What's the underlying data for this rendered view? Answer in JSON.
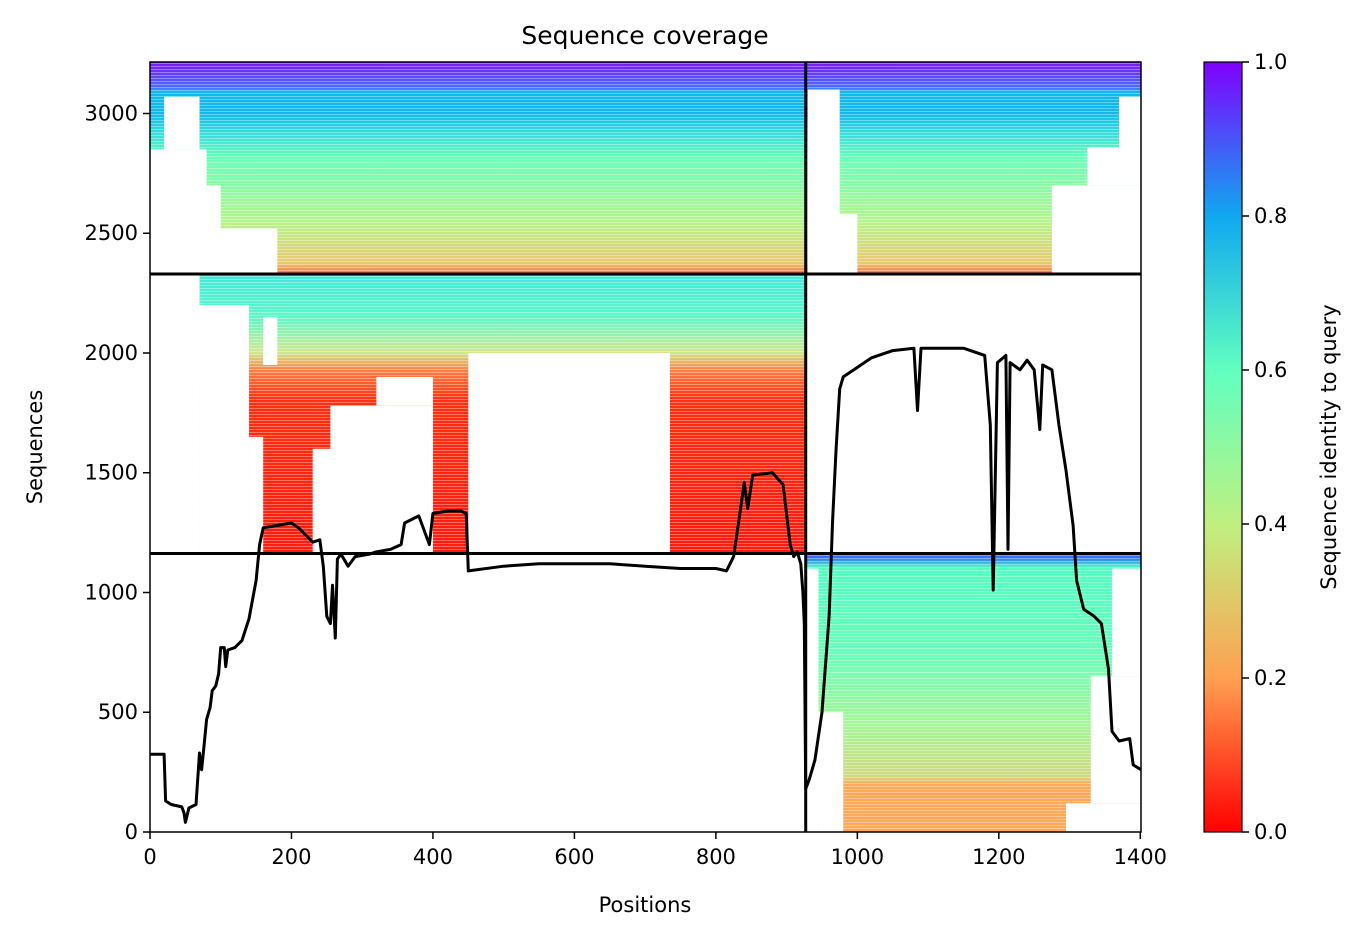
{
  "chart_data": {
    "type": "heatmap",
    "title": "Sequence coverage",
    "xlabel": "Positions",
    "ylabel": "Sequences",
    "xlim": [
      0,
      1401
    ],
    "ylim": [
      0,
      3215
    ],
    "x_ticks": [
      0,
      200,
      400,
      600,
      800,
      1000,
      1200,
      1400
    ],
    "y_ticks": [
      0,
      500,
      1000,
      1500,
      2000,
      2500,
      3000
    ],
    "colorbar": {
      "label": "Sequence identity to query",
      "range": [
        0.0,
        1.0
      ],
      "ticks": [
        "0.0",
        "0.2",
        "0.4",
        "0.6",
        "0.8",
        "1.0"
      ],
      "colormap": "rainbow_r"
    },
    "chain_boundary_x": 927,
    "section_boundaries_y": [
      1163,
      2330
    ],
    "colormap_stops": [
      "#ff0000",
      "#ff7f40",
      "#bfff80",
      "#60ffc0",
      "#0080ff",
      "#8000ff"
    ],
    "coverage_curve": [
      [
        0,
        325
      ],
      [
        20,
        325
      ],
      [
        22,
        130
      ],
      [
        30,
        115
      ],
      [
        45,
        105
      ],
      [
        48,
        80
      ],
      [
        50,
        40
      ],
      [
        55,
        100
      ],
      [
        65,
        115
      ],
      [
        70,
        330
      ],
      [
        73,
        260
      ],
      [
        76,
        350
      ],
      [
        80,
        470
      ],
      [
        85,
        520
      ],
      [
        88,
        590
      ],
      [
        93,
        610
      ],
      [
        97,
        660
      ],
      [
        100,
        770
      ],
      [
        105,
        770
      ],
      [
        107,
        690
      ],
      [
        110,
        760
      ],
      [
        120,
        770
      ],
      [
        130,
        800
      ],
      [
        140,
        890
      ],
      [
        150,
        1050
      ],
      [
        155,
        1200
      ],
      [
        160,
        1270
      ],
      [
        180,
        1280
      ],
      [
        200,
        1290
      ],
      [
        210,
        1270
      ],
      [
        220,
        1240
      ],
      [
        230,
        1210
      ],
      [
        240,
        1220
      ],
      [
        245,
        1110
      ],
      [
        250,
        900
      ],
      [
        255,
        870
      ],
      [
        258,
        1030
      ],
      [
        262,
        810
      ],
      [
        265,
        1140
      ],
      [
        270,
        1160
      ],
      [
        280,
        1110
      ],
      [
        290,
        1150
      ],
      [
        310,
        1160
      ],
      [
        320,
        1170
      ],
      [
        340,
        1180
      ],
      [
        355,
        1200
      ],
      [
        360,
        1290
      ],
      [
        380,
        1320
      ],
      [
        395,
        1200
      ],
      [
        400,
        1330
      ],
      [
        420,
        1340
      ],
      [
        440,
        1340
      ],
      [
        447,
        1330
      ],
      [
        450,
        1090
      ],
      [
        500,
        1110
      ],
      [
        550,
        1120
      ],
      [
        600,
        1120
      ],
      [
        650,
        1120
      ],
      [
        700,
        1110
      ],
      [
        750,
        1100
      ],
      [
        800,
        1100
      ],
      [
        815,
        1090
      ],
      [
        825,
        1150
      ],
      [
        835,
        1350
      ],
      [
        840,
        1460
      ],
      [
        845,
        1350
      ],
      [
        852,
        1490
      ],
      [
        880,
        1500
      ],
      [
        895,
        1450
      ],
      [
        905,
        1200
      ],
      [
        910,
        1150
      ],
      [
        915,
        1170
      ],
      [
        920,
        1120
      ],
      [
        923,
        1000
      ],
      [
        925,
        870
      ],
      [
        927,
        180
      ],
      [
        932,
        220
      ],
      [
        940,
        300
      ],
      [
        950,
        500
      ],
      [
        960,
        900
      ],
      [
        965,
        1300
      ],
      [
        970,
        1600
      ],
      [
        975,
        1850
      ],
      [
        980,
        1900
      ],
      [
        1000,
        1940
      ],
      [
        1020,
        1980
      ],
      [
        1050,
        2010
      ],
      [
        1080,
        2020
      ],
      [
        1085,
        1760
      ],
      [
        1090,
        2020
      ],
      [
        1120,
        2020
      ],
      [
        1150,
        2020
      ],
      [
        1180,
        1990
      ],
      [
        1188,
        1700
      ],
      [
        1192,
        1010
      ],
      [
        1198,
        1960
      ],
      [
        1210,
        1990
      ],
      [
        1213,
        1180
      ],
      [
        1216,
        1960
      ],
      [
        1230,
        1930
      ],
      [
        1240,
        1970
      ],
      [
        1250,
        1930
      ],
      [
        1258,
        1680
      ],
      [
        1262,
        1950
      ],
      [
        1275,
        1930
      ],
      [
        1285,
        1700
      ],
      [
        1295,
        1510
      ],
      [
        1305,
        1280
      ],
      [
        1310,
        1050
      ],
      [
        1320,
        930
      ],
      [
        1335,
        900
      ],
      [
        1345,
        870
      ],
      [
        1355,
        680
      ],
      [
        1360,
        420
      ],
      [
        1370,
        380
      ],
      [
        1385,
        390
      ],
      [
        1390,
        280
      ],
      [
        1401,
        260
      ]
    ]
  }
}
